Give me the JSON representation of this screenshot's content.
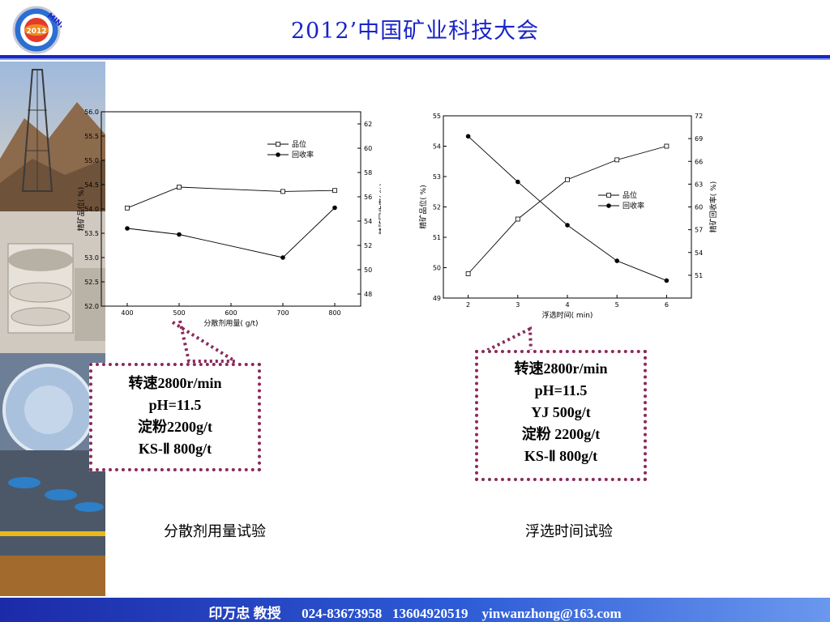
{
  "header": {
    "title": "2012’中国矿业科技大会",
    "logo_text": "MINING",
    "logo_year": "2012",
    "colors": {
      "title": "#1a24c8",
      "rule": "#1a24c8"
    }
  },
  "callouts": {
    "left": [
      "转速2800r/min",
      "pH=11.5",
      "淀粉2200g/t",
      "KS-Ⅱ 800g/t"
    ],
    "right": [
      "转速2800r/min",
      "pH=11.5",
      "YJ 500g/t",
      "淀粉 2200g/t",
      "KS-Ⅱ 800g/t"
    ]
  },
  "captions": {
    "left": "分散剂用量试验",
    "right": "浮选时间试验"
  },
  "footer": {
    "name": "印万忠 教授",
    "phone": "024-83673958",
    "mobile": "13604920519",
    "email": "yinwanzhong@163.com"
  },
  "chart_data": [
    {
      "type": "line",
      "x": [
        400,
        500,
        700,
        800
      ],
      "xticks": [
        "400",
        "500",
        "600",
        "700",
        "800"
      ],
      "xlim": [
        350,
        850
      ],
      "xlabel": "分散剂用量( g/t)",
      "ylabel": "精矿品位( %)",
      "ylim": [
        52.0,
        56.0
      ],
      "yticks": [
        "52.0",
        "52.5",
        "53.0",
        "53.5",
        "54.0",
        "54.5",
        "55.0",
        "55.5",
        "56.0"
      ],
      "y2label": "精矿回收率( %)",
      "y2lim": [
        47,
        63
      ],
      "y2ticks": [
        "48",
        "50",
        "52",
        "54",
        "56",
        "58",
        "60",
        "62"
      ],
      "series": [
        {
          "name": "品位",
          "axis": "left",
          "marker": "square",
          "values": [
            54.02,
            54.45,
            54.36,
            54.38
          ]
        },
        {
          "name": "回收率",
          "axis": "right",
          "marker": "dot",
          "values": [
            53.4,
            52.9,
            51.0,
            55.1
          ]
        }
      ],
      "legend": "top-right",
      "grid": false
    },
    {
      "type": "line",
      "x": [
        2,
        3,
        4,
        5,
        6
      ],
      "xticks": [
        "2",
        "3",
        "4",
        "5",
        "6"
      ],
      "xlim": [
        1.5,
        6.5
      ],
      "xlabel": "浮选时间( min)",
      "ylabel": "精矿品位( %)",
      "ylim": [
        49,
        55
      ],
      "yticks": [
        "49",
        "50",
        "51",
        "52",
        "53",
        "54",
        "55"
      ],
      "y2label": "精矿回收率( %)",
      "y2lim": [
        48,
        72
      ],
      "y2ticks": [
        "51",
        "54",
        "57",
        "60",
        "63",
        "66",
        "69",
        "72"
      ],
      "series": [
        {
          "name": "品位",
          "axis": "left",
          "marker": "square",
          "values": [
            49.8,
            51.6,
            52.9,
            53.55,
            54.0
          ]
        },
        {
          "name": "回收率",
          "axis": "right",
          "marker": "dot",
          "values": [
            69.3,
            63.3,
            57.6,
            52.9,
            50.3
          ]
        }
      ],
      "legend": "right",
      "grid": false
    }
  ]
}
